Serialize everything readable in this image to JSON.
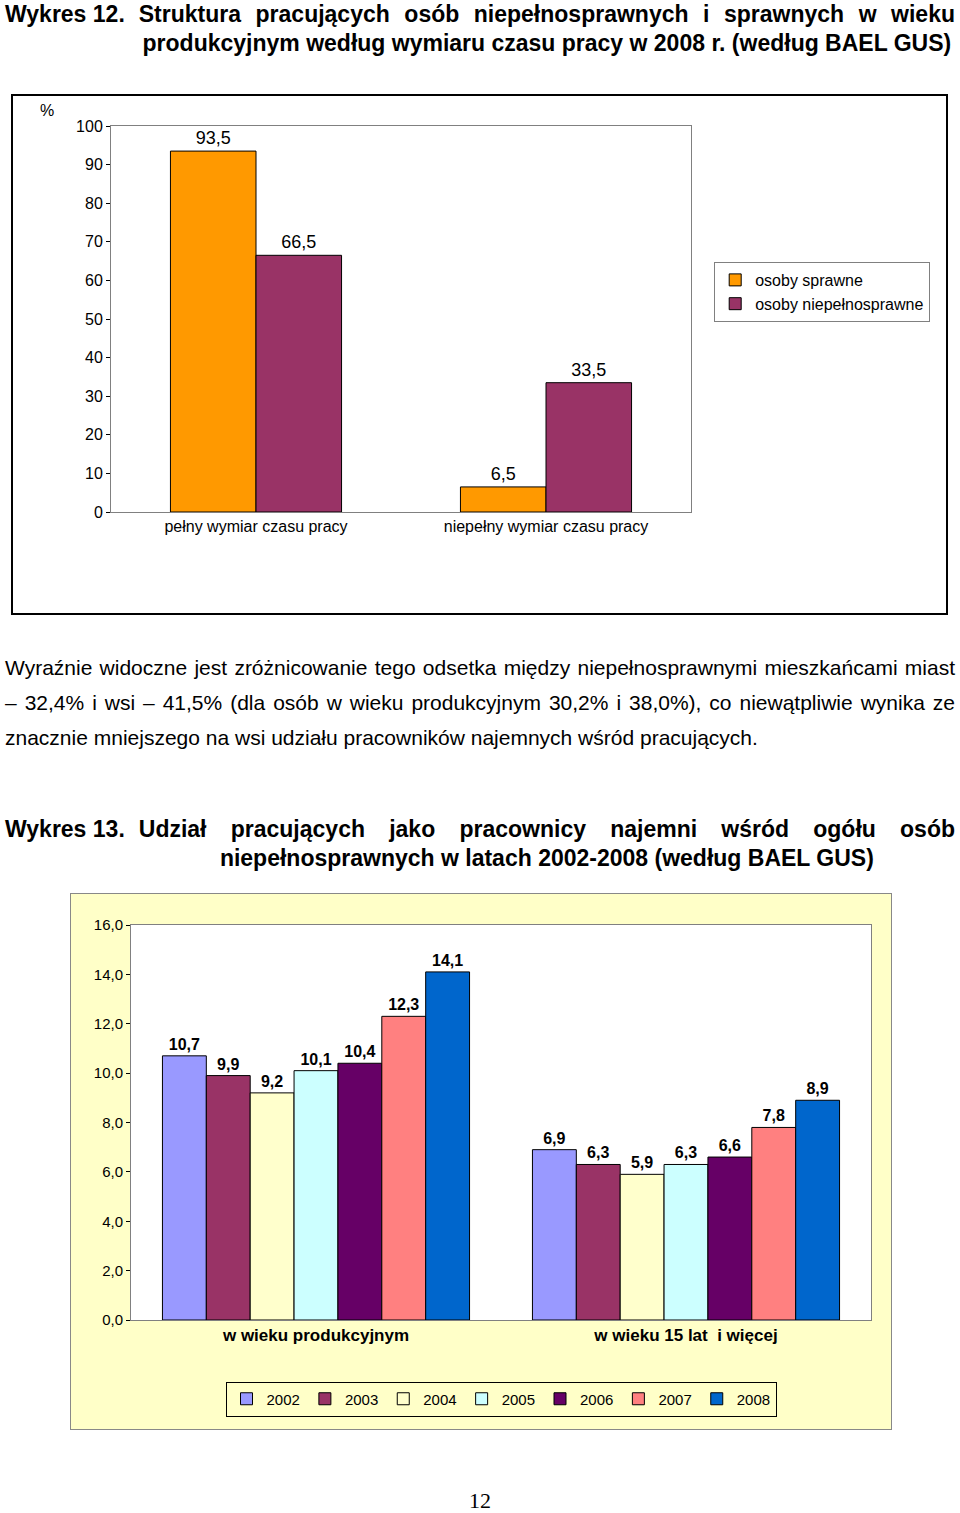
{
  "heading_1": {
    "label": "Wykres 12.",
    "text": "Struktura pracujących osób niepełnosprawnych i sprawnych w wieku produkcyjnym według wymiaru czasu pracy w 2008 r. (według BAEL GUS)"
  },
  "chart_data": [
    {
      "type": "bar",
      "ylabel": "%",
      "categories": [
        "pełny wymiar czasu pracy",
        "niepełny wymiar czasu pracy"
      ],
      "series": [
        {
          "name": "osoby sprawne",
          "color": "#FF9900",
          "values": [
            93.5,
            6.5
          ],
          "value_labels": [
            "93,5",
            "6,5"
          ]
        },
        {
          "name": "osoby niepełnosprawne",
          "color": "#993366",
          "values": [
            66.5,
            33.5
          ],
          "value_labels": [
            "66,5",
            "33,5"
          ]
        }
      ],
      "ylim": [
        0,
        100
      ],
      "yticks": [
        0,
        10,
        20,
        30,
        40,
        50,
        60,
        70,
        80,
        90,
        100
      ],
      "grid": false,
      "legend": "right",
      "data_labels": true
    },
    {
      "type": "bar",
      "categories": [
        "w wieku produkcyjnym",
        "w wieku 15 lat  i więcej"
      ],
      "series": [
        {
          "name": "2002",
          "color": "#9999FF",
          "values": [
            10.7,
            6.9
          ],
          "value_labels": [
            "10,7",
            "6,9"
          ]
        },
        {
          "name": "2003",
          "color": "#993366",
          "values": [
            9.9,
            6.3
          ],
          "value_labels": [
            "9,9",
            "6,3"
          ]
        },
        {
          "name": "2004",
          "color": "#FFFFCC",
          "values": [
            9.2,
            5.9
          ],
          "value_labels": [
            "9,2",
            "5,9"
          ]
        },
        {
          "name": "2005",
          "color": "#CCFFFF",
          "values": [
            10.1,
            6.3
          ],
          "value_labels": [
            "10,1",
            "6,3"
          ]
        },
        {
          "name": "2006",
          "color": "#660066",
          "values": [
            10.4,
            6.6
          ],
          "value_labels": [
            "10,4",
            "6,6"
          ]
        },
        {
          "name": "2007",
          "color": "#FF8080",
          "values": [
            12.3,
            7.8
          ],
          "value_labels": [
            "12,3",
            "7,8"
          ]
        },
        {
          "name": "2008",
          "color": "#0066CC",
          "values": [
            14.1,
            8.9
          ],
          "value_labels": [
            "14,1",
            "8,9"
          ]
        }
      ],
      "ylim": [
        0,
        16
      ],
      "yticks": [
        {
          "value": 0,
          "label": "0,0"
        },
        {
          "value": 2,
          "label": "2,0"
        },
        {
          "value": 4,
          "label": "4,0"
        },
        {
          "value": 6,
          "label": "6,0"
        },
        {
          "value": 8,
          "label": "8,0"
        },
        {
          "value": 10,
          "label": "10,0"
        },
        {
          "value": 12,
          "label": "12,0"
        },
        {
          "value": 14,
          "label": "14,0"
        },
        {
          "value": 16,
          "label": "16,0"
        }
      ],
      "grid": false,
      "legend": "bottom",
      "data_labels": true
    }
  ],
  "paragraph": "Wyraźnie widoczne jest zróżnicowanie tego odsetka między niepełnosprawnymi mieszkańcami miast – 32,4% i wsi – 41,5% (dla osób w wieku produkcyjnym 30,2% i 38,0%), co niewątpliwie wynika ze znacznie mniejszego na wsi udziału pracowników najemnych wśród pracujących.",
  "heading_2": {
    "label": "Wykres 13.",
    "text": "Udział pracujących jako pracownicy najemni wśród ogółu osób niepełnosprawnych w latach 2002-2008 (według BAEL GUS)"
  },
  "page_number": "12"
}
